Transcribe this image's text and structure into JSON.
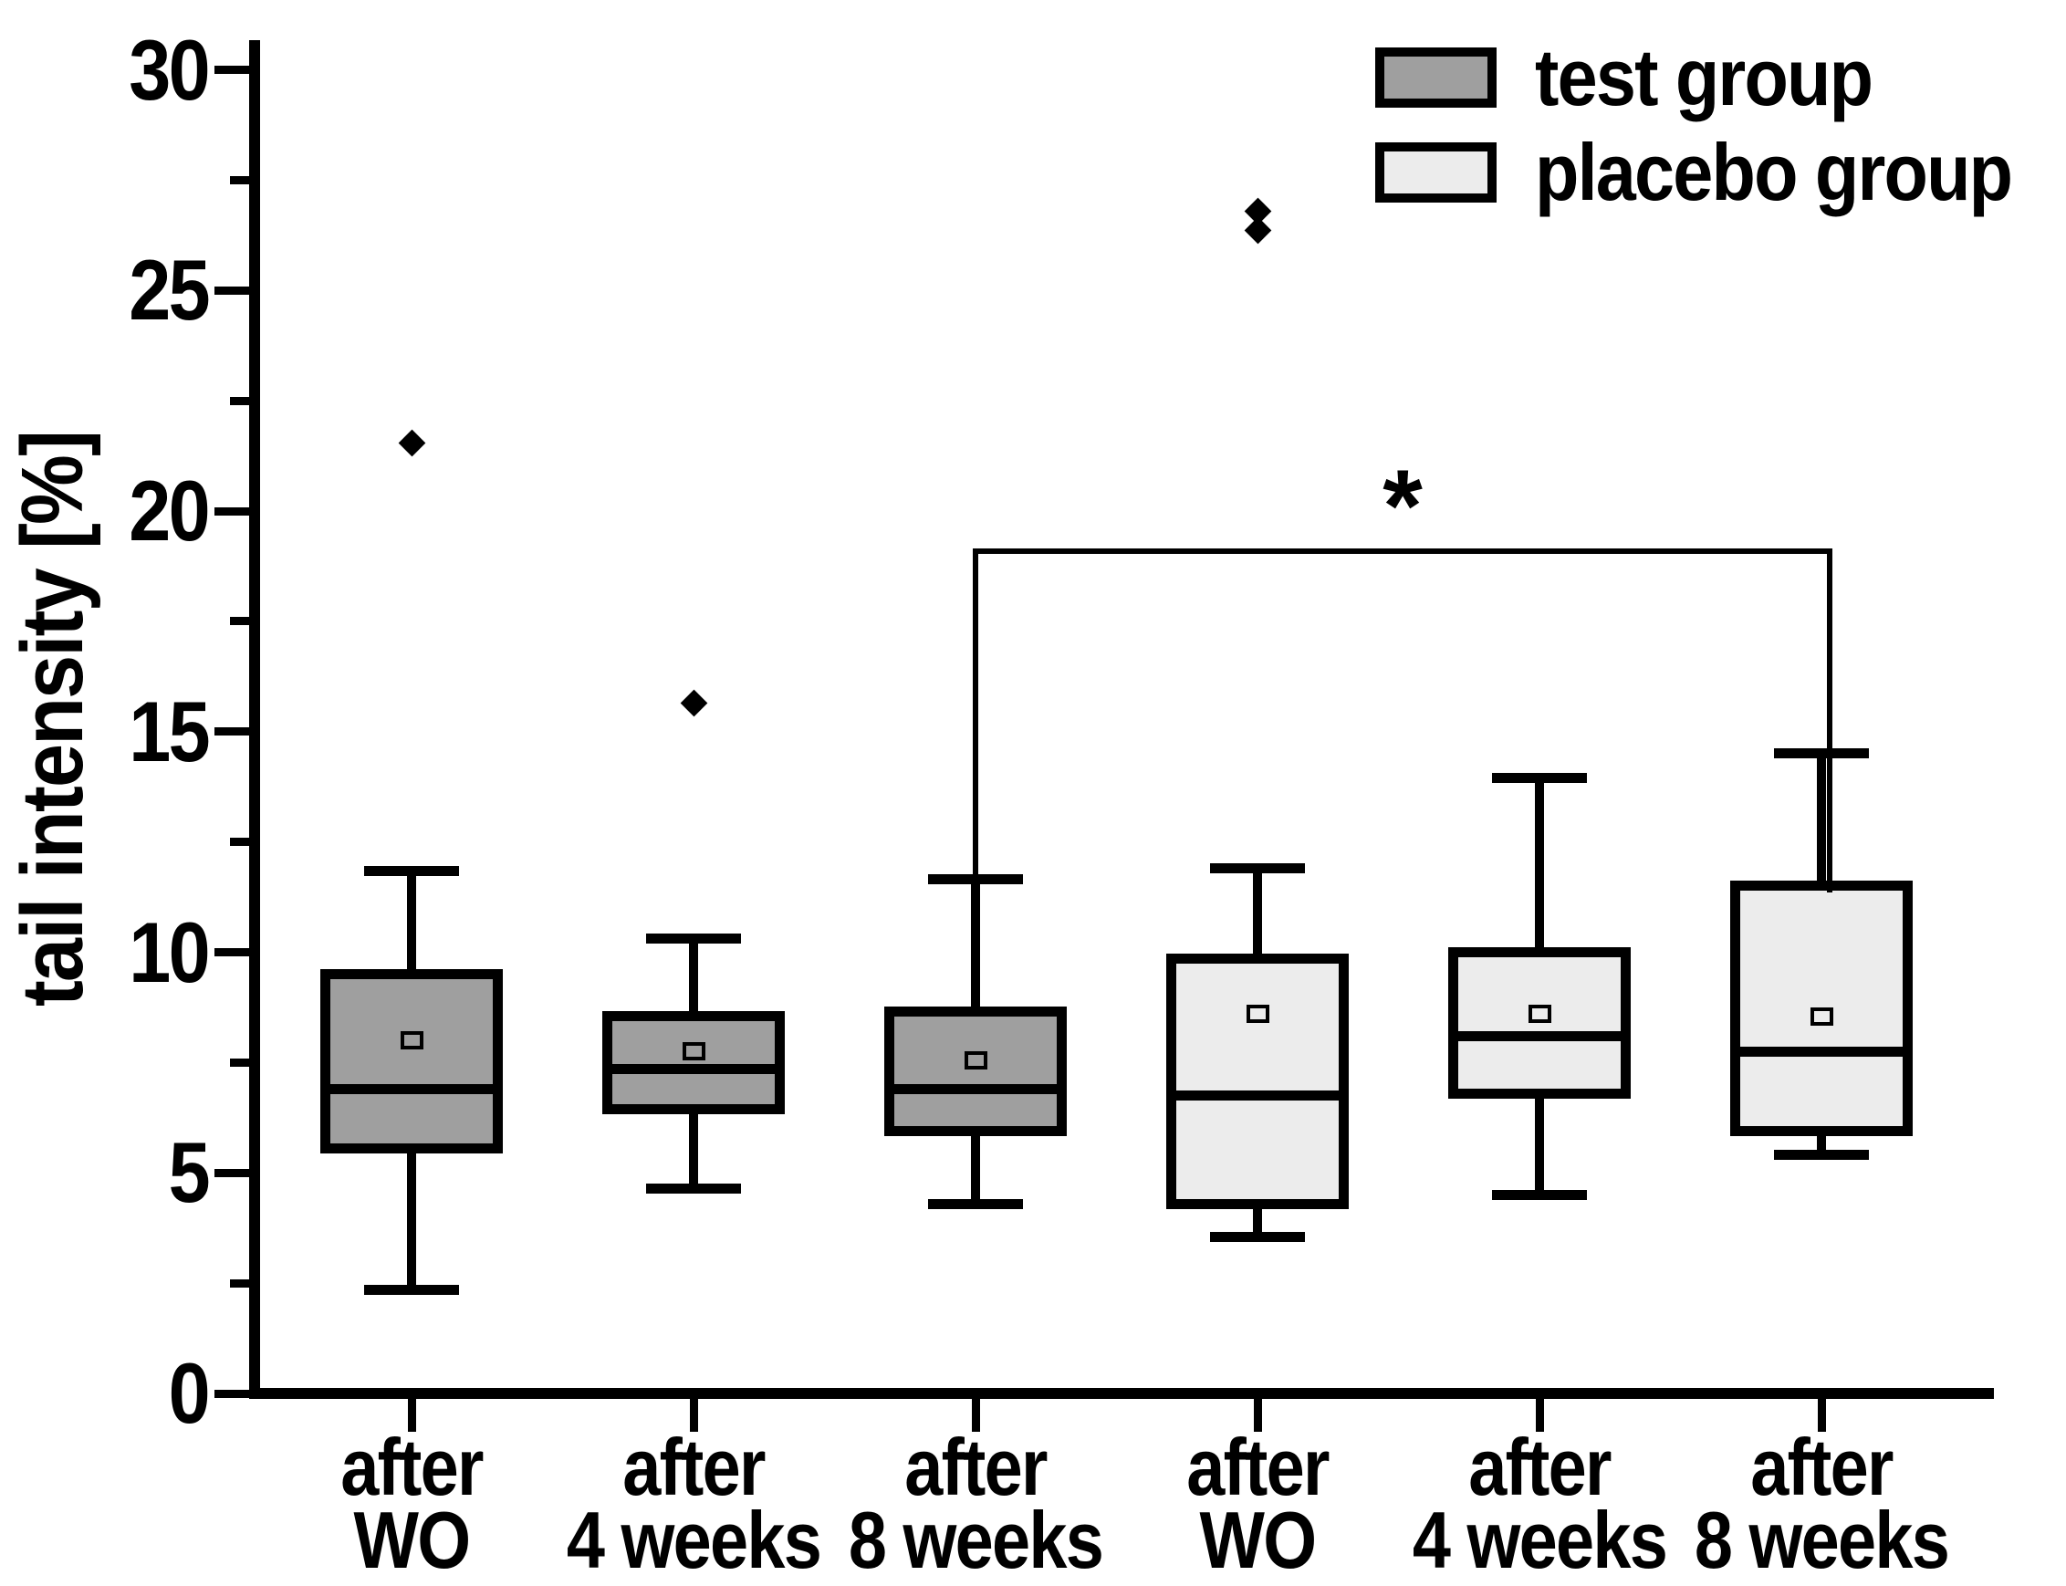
{
  "figure": {
    "background": "#ffffff"
  },
  "axes": {
    "y": {
      "title": "tail intensity [%]",
      "min": 0,
      "max": 30,
      "major_step": 5,
      "minor_step": 2.5,
      "tick_labels": [
        "0",
        "5",
        "10",
        "15",
        "20",
        "25",
        "30"
      ]
    },
    "x": {
      "group_labels": [
        [
          "after",
          "WO"
        ],
        [
          "after",
          "4 weeks"
        ],
        [
          "after",
          "8 weeks"
        ],
        [
          "after",
          "WO"
        ],
        [
          "after",
          "4 weeks"
        ],
        [
          "after",
          "8 weeks"
        ]
      ]
    }
  },
  "legend": [
    {
      "label": "test group",
      "color": "#9f9f9f"
    },
    {
      "label": "placebo group",
      "color": "#ececec"
    }
  ],
  "significance": {
    "symbol": "*",
    "from_category_index": 2,
    "to_category_index": 5,
    "bar_value": 19.1,
    "leg_bottom_value": 11.35
  },
  "chart_data": {
    "type": "box",
    "title": "",
    "xlabel": "",
    "ylabel": "tail intensity [%]",
    "ylim": [
      0,
      30
    ],
    "grid": false,
    "legend_position": "top-right",
    "categories": [
      "after WO",
      "after 4 weeks",
      "after 8 weeks",
      "after WO",
      "after 4 weeks",
      "after 8 weeks"
    ],
    "series": [
      {
        "name": "test group",
        "color": "#9f9f9f",
        "boxes": [
          {
            "category": "after WO",
            "whisker_low": 2.35,
            "q1": 5.55,
            "median": 6.9,
            "q3": 9.5,
            "whisker_high": 11.85,
            "mean": 8.0,
            "outliers": [
              21.55
            ]
          },
          {
            "category": "after 4 weeks",
            "whisker_low": 4.65,
            "q1": 6.45,
            "median": 7.35,
            "q3": 8.55,
            "whisker_high": 10.3,
            "mean": 7.75,
            "outliers": [
              15.65
            ]
          },
          {
            "category": "after 8 weeks",
            "whisker_low": 4.3,
            "q1": 5.95,
            "median": 6.9,
            "q3": 8.65,
            "whisker_high": 11.65,
            "mean": 7.55,
            "outliers": []
          }
        ]
      },
      {
        "name": "placebo group",
        "color": "#ececec",
        "boxes": [
          {
            "category": "after WO",
            "whisker_low": 3.55,
            "q1": 4.3,
            "median": 6.75,
            "q3": 9.85,
            "whisker_high": 11.9,
            "mean": 8.6,
            "outliers": [
              26.35,
              26.8
            ]
          },
          {
            "category": "after 4 weeks",
            "whisker_low": 4.5,
            "q1": 6.8,
            "median": 8.1,
            "q3": 10.0,
            "whisker_high": 13.95,
            "mean": 8.6,
            "outliers": []
          },
          {
            "category": "after 8 weeks",
            "whisker_low": 5.4,
            "q1": 5.95,
            "median": 7.75,
            "q3": 11.5,
            "whisker_high": 14.5,
            "mean": 8.55,
            "outliers": []
          }
        ]
      }
    ]
  }
}
